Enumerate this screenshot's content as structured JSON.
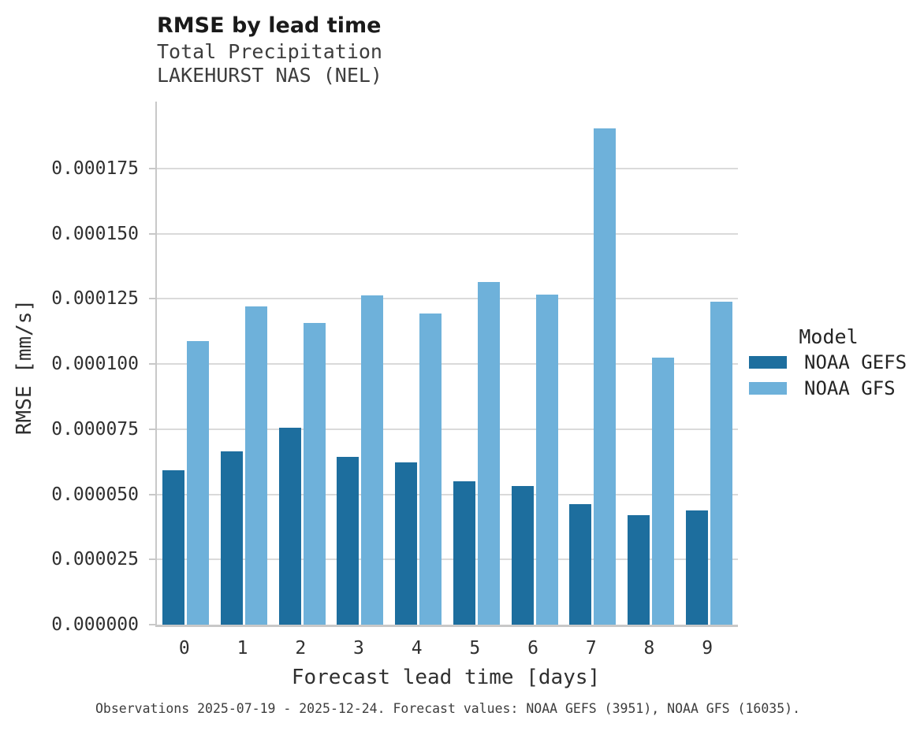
{
  "header": {
    "title": "RMSE by lead time",
    "subtitle_line1": "Total Precipitation",
    "subtitle_line2": "LAKEHURST NAS (NEL)"
  },
  "chart_data": {
    "type": "bar",
    "title": "RMSE by lead time",
    "subtitle": [
      "Total Precipitation",
      "LAKEHURST NAS (NEL)"
    ],
    "categories": [
      "0",
      "1",
      "2",
      "3",
      "4",
      "5",
      "6",
      "7",
      "8",
      "9"
    ],
    "series": [
      {
        "name": "NOAA GEFS",
        "color": "#1d6e9e",
        "values": [
          5.93e-05,
          6.65e-05,
          7.55e-05,
          6.44e-05,
          6.23e-05,
          5.5e-05,
          5.32e-05,
          4.63e-05,
          4.2e-05,
          4.38e-05
        ]
      },
      {
        "name": "NOAA GFS",
        "color": "#6eb1da",
        "values": [
          0.0001088,
          0.0001221,
          0.0001158,
          0.0001264,
          0.0001194,
          0.0001315,
          0.0001267,
          0.0001904,
          0.0001025,
          0.0001239
        ]
      }
    ],
    "xlabel": "Forecast lead time [days]",
    "ylabel": "RMSE [mm/s]",
    "ylim": [
      0,
      0.0002007
    ],
    "yticks": [
      0.0,
      2.5e-05,
      5e-05,
      7.5e-05,
      0.0001,
      0.000125,
      0.00015,
      0.000175
    ],
    "ytick_format_decimals": 6,
    "grid": true,
    "legend_position": "center-right"
  },
  "legend": {
    "title": "Model",
    "items": [
      {
        "label": "NOAA GEFS",
        "color": "#1d6e9e"
      },
      {
        "label": "NOAA GFS",
        "color": "#6eb1da"
      }
    ]
  },
  "caption": "Observations 2025-07-19 - 2025-12-24. Forecast values: NOAA GEFS (3951), NOAA GFS (16035)."
}
